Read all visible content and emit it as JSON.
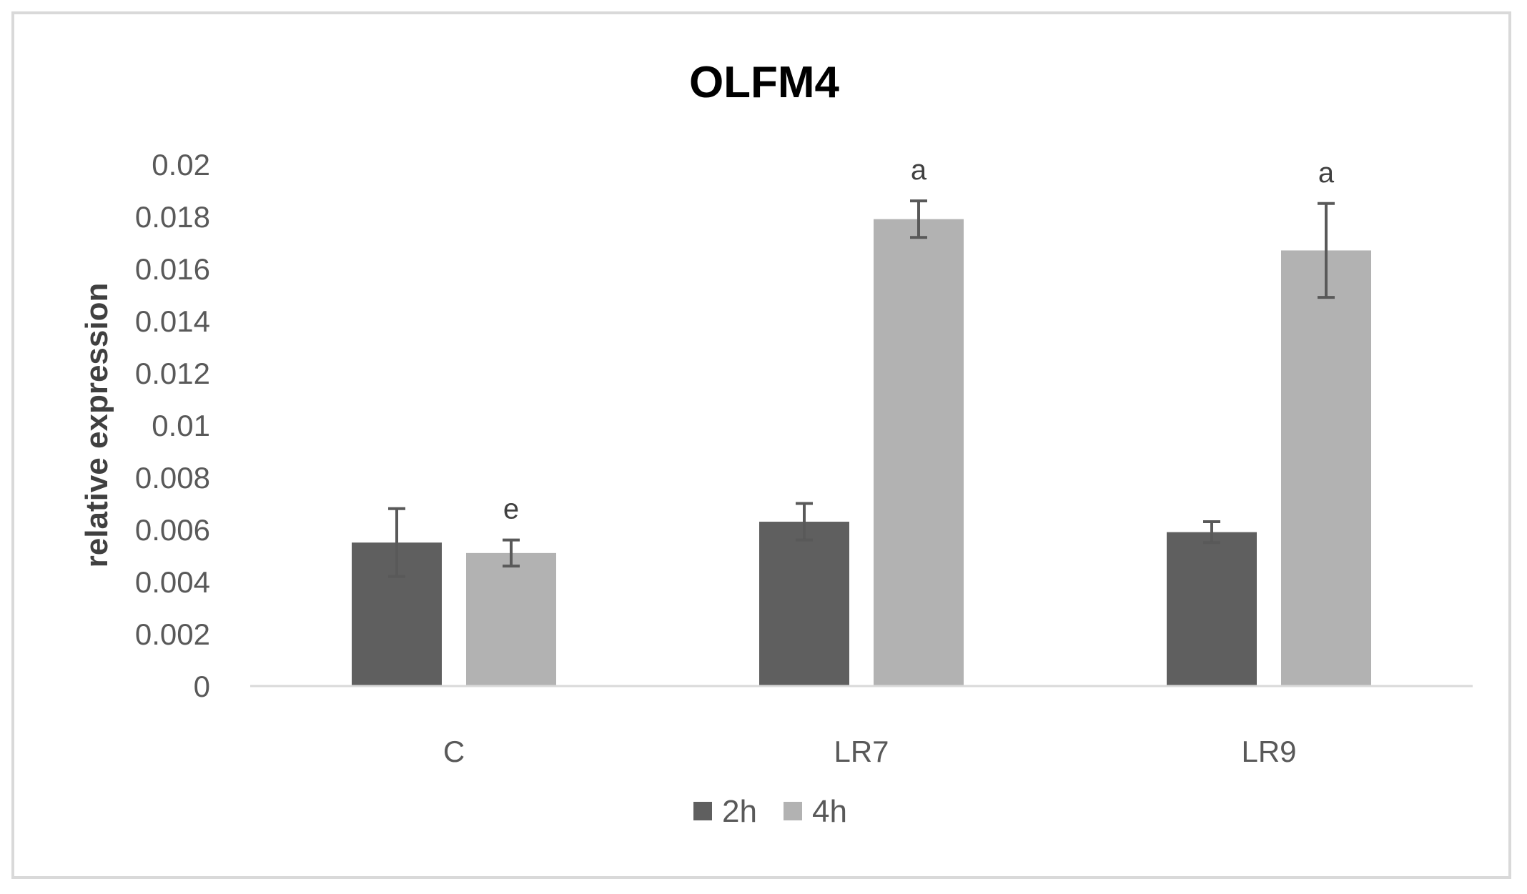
{
  "chart_data": {
    "type": "bar",
    "title": "OLFM4",
    "xlabel": "",
    "ylabel": "relative expression",
    "ylim": [
      0,
      0.02
    ],
    "yticks": [
      "0",
      "0.002",
      "0.004",
      "0.006",
      "0.008",
      "0.01",
      "0.012",
      "0.014",
      "0.016",
      "0.018",
      "0.02"
    ],
    "categories": [
      "C",
      "LR7",
      "LR9"
    ],
    "series": [
      {
        "name": "2h",
        "color": "#5f5f5f",
        "values": [
          0.0055,
          0.0063,
          0.0059
        ],
        "errors": [
          0.0013,
          0.0007,
          0.0004
        ],
        "annotations": [
          "",
          "",
          ""
        ]
      },
      {
        "name": "4h",
        "color": "#b2b2b2",
        "values": [
          0.0051,
          0.0179,
          0.0167
        ],
        "errors": [
          0.0005,
          0.0007,
          0.0018
        ],
        "annotations": [
          "e",
          "a",
          "a"
        ]
      }
    ],
    "grid": false,
    "legend_position": "bottom",
    "error_bar_color": "#595959",
    "axis_color": "#d9d9d9"
  }
}
